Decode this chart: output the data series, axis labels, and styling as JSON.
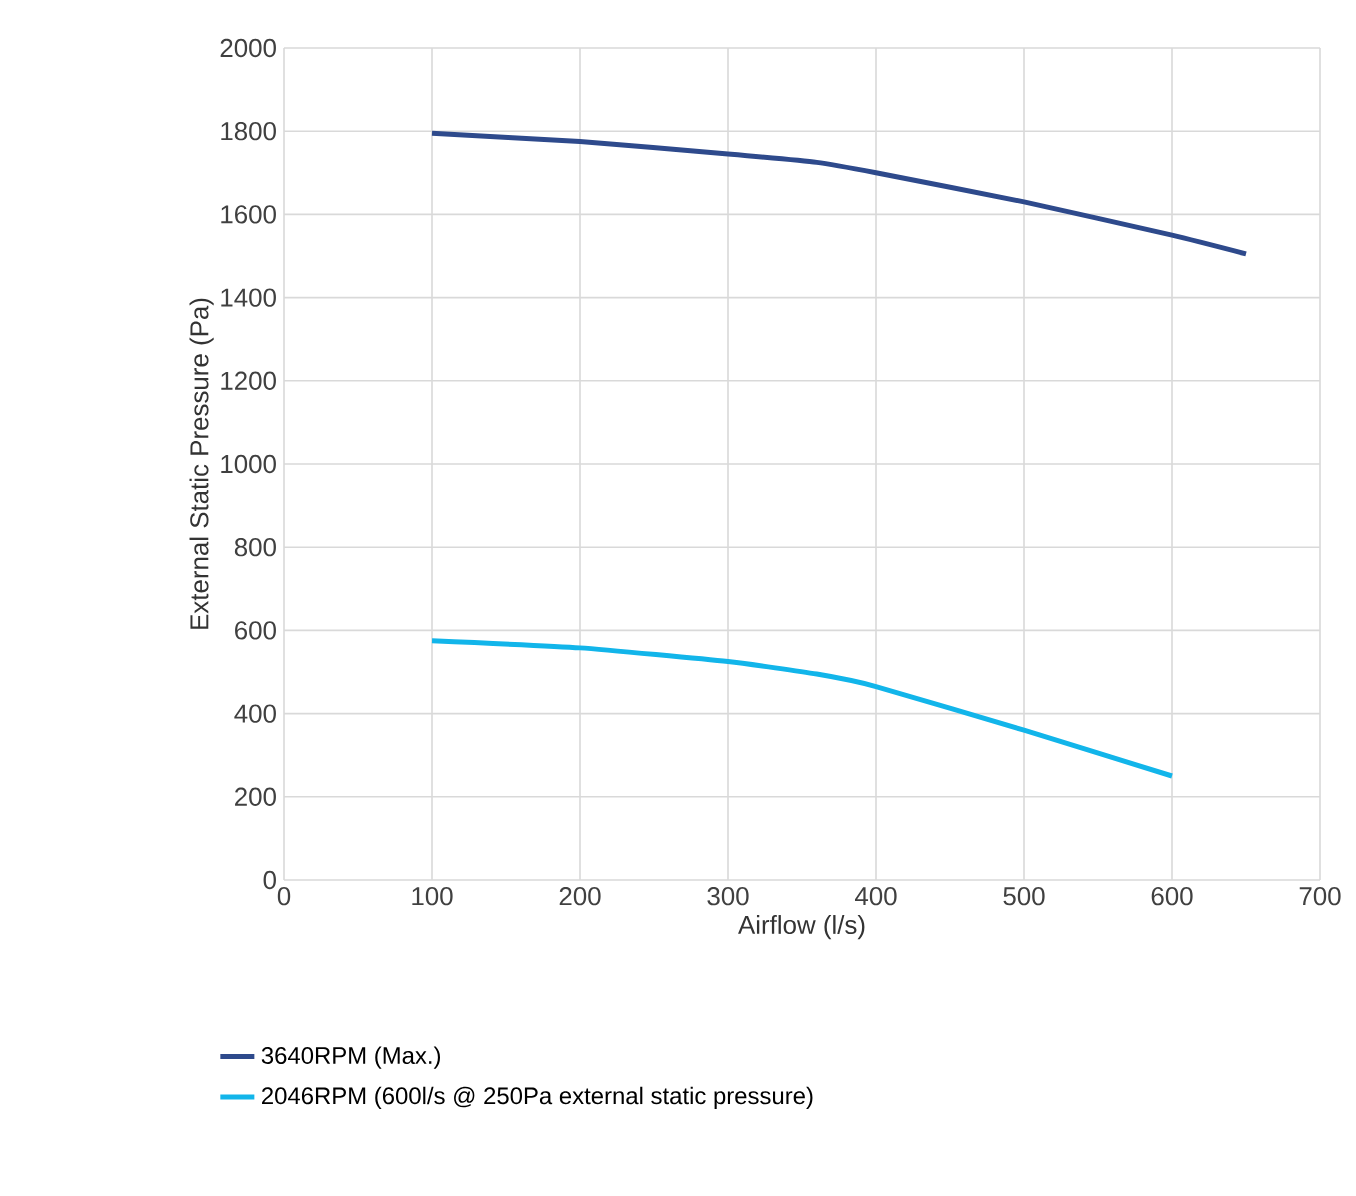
{
  "chart_data": {
    "type": "line",
    "xlabel": "Airflow (l/s)",
    "ylabel": "External Static Pressure (Pa)",
    "xlim": [
      0,
      700
    ],
    "xticks": [
      0,
      100,
      200,
      300,
      400,
      500,
      600,
      700
    ],
    "ylim": [
      0,
      2000
    ],
    "yticks": [
      0,
      200,
      400,
      600,
      800,
      1000,
      1200,
      1400,
      1600,
      1800,
      2000
    ],
    "grid": true,
    "legend": "bottom",
    "marker": "none",
    "line_style": "solid",
    "series": [
      {
        "name": "3640RPM (Max.)",
        "color": "#2e4a8c",
        "x": [
          100,
          200,
          300,
          360,
          400,
          500,
          600,
          650
        ],
        "values": [
          1795,
          1775,
          1745,
          1725,
          1700,
          1630,
          1550,
          1505
        ]
      },
      {
        "name": "2046RPM (600l/s @ 250Pa external static pressure)",
        "color": "#12b5ea",
        "x": [
          100,
          200,
          300,
          360,
          400,
          500,
          600
        ],
        "values": [
          575,
          558,
          525,
          495,
          465,
          360,
          250
        ]
      }
    ]
  }
}
